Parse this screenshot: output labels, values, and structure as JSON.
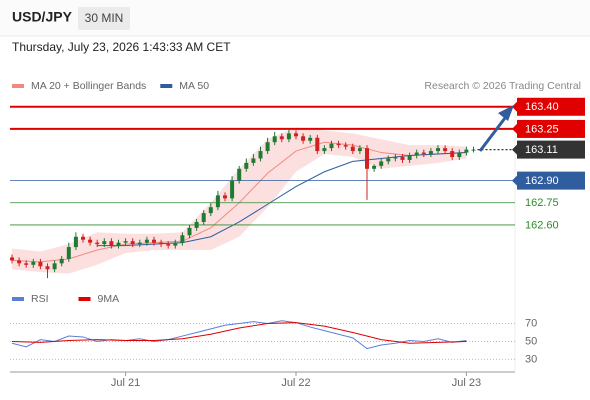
{
  "header": {
    "symbol": "USD/JPY",
    "interval": "30 MIN",
    "timestamp": "Thursday, July 23, 2026 1:43:33 AM CET",
    "credit": "Research © 2026 Trading Central"
  },
  "chart_data": [
    {
      "type": "candlestick",
      "categories": [
        null,
        null,
        null,
        null,
        null,
        null,
        null,
        null,
        null,
        null,
        null,
        null,
        null,
        null,
        null,
        null,
        "Jul 21",
        null,
        null,
        null,
        null,
        null,
        null,
        null,
        null,
        null,
        null,
        null,
        null,
        null,
        null,
        null,
        null,
        null,
        null,
        null,
        null,
        null,
        null,
        null,
        "Jul 22",
        null,
        null,
        null,
        null,
        null,
        null,
        null,
        null,
        null,
        null,
        null,
        null,
        null,
        null,
        null,
        null,
        null,
        null,
        null,
        null,
        null,
        null,
        null,
        "Jul 23",
        null
      ],
      "open": [
        162.38,
        162.36,
        162.34,
        162.33,
        162.35,
        162.32,
        162.3,
        162.34,
        162.37,
        162.45,
        162.52,
        162.5,
        162.48,
        162.47,
        162.49,
        162.46,
        162.48,
        162.49,
        162.47,
        162.48,
        162.5,
        162.48,
        162.47,
        162.46,
        162.48,
        162.53,
        162.58,
        162.62,
        162.68,
        162.72,
        162.8,
        162.78,
        162.9,
        162.98,
        163.02,
        163.05,
        163.1,
        163.16,
        163.2,
        163.18,
        163.22,
        163.2,
        163.17,
        163.19,
        163.1,
        163.12,
        163.15,
        163.14,
        163.13,
        163.1,
        163.12,
        162.98,
        163.0,
        163.03,
        163.05,
        163.06,
        163.04,
        163.07,
        163.09,
        163.08,
        163.1,
        163.12,
        163.1,
        163.06,
        163.09,
        163.11
      ],
      "high": [
        162.4,
        162.38,
        162.36,
        162.37,
        162.37,
        162.34,
        162.36,
        162.39,
        162.48,
        162.55,
        162.54,
        162.52,
        162.5,
        162.51,
        162.51,
        162.5,
        162.51,
        162.51,
        162.5,
        162.52,
        162.52,
        162.5,
        162.49,
        162.5,
        162.55,
        162.6,
        162.64,
        162.7,
        162.75,
        162.83,
        162.82,
        162.93,
        163.0,
        163.05,
        163.08,
        163.13,
        163.19,
        163.23,
        163.22,
        163.25,
        163.24,
        163.22,
        163.21,
        163.21,
        163.14,
        163.17,
        163.17,
        163.16,
        163.15,
        163.14,
        163.14,
        163.01,
        163.05,
        163.07,
        163.08,
        163.08,
        163.09,
        163.11,
        163.11,
        163.12,
        163.14,
        163.14,
        163.12,
        163.11,
        163.13,
        163.13
      ],
      "low": [
        162.34,
        162.32,
        162.31,
        162.31,
        162.3,
        162.24,
        162.28,
        162.32,
        162.35,
        162.43,
        162.48,
        162.46,
        162.45,
        162.45,
        162.44,
        162.44,
        162.46,
        162.45,
        162.45,
        162.46,
        162.46,
        162.45,
        162.44,
        162.44,
        162.46,
        162.51,
        162.56,
        162.6,
        162.66,
        162.7,
        162.76,
        162.76,
        162.88,
        162.96,
        163.0,
        163.03,
        163.08,
        163.14,
        163.16,
        163.16,
        163.18,
        163.15,
        163.15,
        163.08,
        163.08,
        163.1,
        163.12,
        163.11,
        163.08,
        163.08,
        162.77,
        162.96,
        162.98,
        163.01,
        163.03,
        163.02,
        163.02,
        163.05,
        163.06,
        163.06,
        163.08,
        163.08,
        163.04,
        163.04,
        163.07,
        163.09
      ],
      "close": [
        162.36,
        162.34,
        162.33,
        162.35,
        162.32,
        162.3,
        162.34,
        162.37,
        162.45,
        162.52,
        162.5,
        162.48,
        162.47,
        162.49,
        162.46,
        162.48,
        162.49,
        162.47,
        162.48,
        162.5,
        162.48,
        162.47,
        162.46,
        162.48,
        162.53,
        162.58,
        162.62,
        162.68,
        162.72,
        162.8,
        162.78,
        162.9,
        162.98,
        163.02,
        163.05,
        163.1,
        163.16,
        163.2,
        163.18,
        163.22,
        163.2,
        163.17,
        163.19,
        163.1,
        163.12,
        163.15,
        163.14,
        163.13,
        163.1,
        163.12,
        162.98,
        163.0,
        163.03,
        163.05,
        163.06,
        163.04,
        163.07,
        163.09,
        163.08,
        163.1,
        163.12,
        163.1,
        163.06,
        163.09,
        163.11,
        163.11
      ],
      "up_color": "#1f7a33",
      "down_color": "#d42020",
      "series": [
        {
          "name": "MA 20 + Bollinger Bands",
          "color": "#f08a80",
          "band_color": "#fbd5d5",
          "x": [
            0,
            4,
            8,
            12,
            16,
            20,
            24,
            28,
            32,
            36,
            40,
            44,
            48,
            52,
            56,
            60,
            64
          ],
          "values": [
            162.36,
            162.35,
            162.37,
            162.43,
            162.47,
            162.48,
            162.49,
            162.58,
            162.75,
            162.95,
            163.1,
            163.16,
            163.14,
            163.09,
            163.07,
            163.08,
            163.09
          ],
          "upper": [
            162.44,
            162.42,
            162.47,
            162.55,
            162.54,
            162.54,
            162.55,
            162.75,
            162.98,
            163.18,
            163.26,
            163.24,
            163.22,
            163.18,
            163.14,
            163.14,
            163.13
          ],
          "lower": [
            162.3,
            162.28,
            162.27,
            162.33,
            162.41,
            162.43,
            162.43,
            162.43,
            162.52,
            162.72,
            162.96,
            163.08,
            163.06,
            162.98,
            163.0,
            163.02,
            163.05
          ]
        },
        {
          "name": "MA 50",
          "color": "#2f5d9e",
          "x": [
            12,
            16,
            20,
            24,
            28,
            32,
            36,
            40,
            44,
            48,
            52,
            56,
            60,
            64
          ],
          "values": [
            162.46,
            162.46,
            162.47,
            162.48,
            162.52,
            162.62,
            162.74,
            162.86,
            162.96,
            163.03,
            163.05,
            163.07,
            163.08,
            163.09
          ]
        }
      ],
      "ylim": [
        162.2,
        163.5
      ],
      "yticks": [
        {
          "value": 163.4,
          "label": "163.40"
        },
        163.25,
        163.11,
        {
          "value": 162.9,
          "label": "162.90"
        },
        162.75,
        {
          "value": 162.6,
          "label": "162.60"
        }
      ],
      "ytick_colors": [
        "#e00000",
        "#e00000",
        "#333333",
        "#2f5d9e",
        "#2e8b2e",
        "#2e8b2e"
      ],
      "ytick_boxes": [
        true,
        true,
        true,
        true,
        false,
        false
      ],
      "ytick_styles": [
        "solid",
        "solid",
        "dotted",
        "solid",
        "solid",
        "solid"
      ]
    },
    {
      "type": "line",
      "series": [
        {
          "name": "RSI",
          "color": "#5b7fd6",
          "x": [
            0,
            2,
            4,
            6,
            8,
            10,
            12,
            14,
            16,
            18,
            20,
            22,
            24,
            26,
            28,
            30,
            32,
            34,
            36,
            38,
            40,
            42,
            44,
            46,
            48,
            50,
            52,
            54,
            56,
            58,
            60,
            62,
            64
          ],
          "values": [
            48,
            44,
            52,
            50,
            56,
            55,
            50,
            52,
            51,
            53,
            50,
            52,
            56,
            60,
            64,
            68,
            70,
            72,
            70,
            73,
            71,
            66,
            62,
            58,
            54,
            42,
            46,
            48,
            51,
            50,
            53,
            49,
            51
          ]
        },
        {
          "name": "9MA",
          "color": "#e00000",
          "x": [
            0,
            4,
            8,
            12,
            16,
            20,
            24,
            28,
            32,
            36,
            40,
            44,
            48,
            52,
            56,
            60,
            64
          ],
          "values": [
            50,
            49,
            51,
            52,
            51,
            51,
            53,
            58,
            65,
            70,
            71,
            67,
            60,
            52,
            48,
            49,
            50
          ]
        }
      ],
      "ylim": [
        16,
        85
      ],
      "yticks": [
        70,
        50,
        30
      ]
    }
  ]
}
